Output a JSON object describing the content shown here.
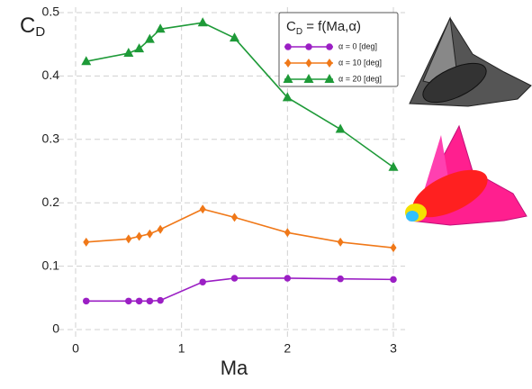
{
  "chart_data": {
    "type": "line",
    "x_label": "Ma",
    "y_label": [
      "C",
      "D"
    ],
    "legend_title": [
      "C",
      "D",
      " = f(Ma,α)"
    ],
    "x": [
      0.1,
      0.5,
      0.6,
      0.7,
      0.8,
      1.2,
      1.5,
      2,
      2.5,
      3
    ],
    "series": [
      {
        "name": "α = 0 [deg]",
        "color": "#9b1fc4",
        "marker": "circle",
        "values": [
          0.045,
          0.045,
          0.045,
          0.045,
          0.046,
          0.075,
          0.081,
          0.081,
          0.08,
          0.079
        ]
      },
      {
        "name": "α = 10 [deg]",
        "color": "#f07818",
        "marker": "diamond",
        "values": [
          0.138,
          0.143,
          0.147,
          0.151,
          0.158,
          0.19,
          0.177,
          0.153,
          0.138,
          0.129
        ]
      },
      {
        "name": "α = 20 [deg]",
        "color": "#1e9a38",
        "marker": "triangle",
        "values": [
          0.423,
          0.436,
          0.443,
          0.458,
          0.474,
          0.484,
          0.46,
          0.366,
          0.316,
          0.256
        ]
      }
    ],
    "xlim": [
      0,
      3
    ],
    "ylim": [
      0,
      0.5
    ],
    "xticks": [
      0,
      1,
      2,
      3
    ],
    "yticks": [
      0,
      0.1,
      0.2,
      0.3,
      0.4,
      0.5
    ],
    "grid": true
  }
}
